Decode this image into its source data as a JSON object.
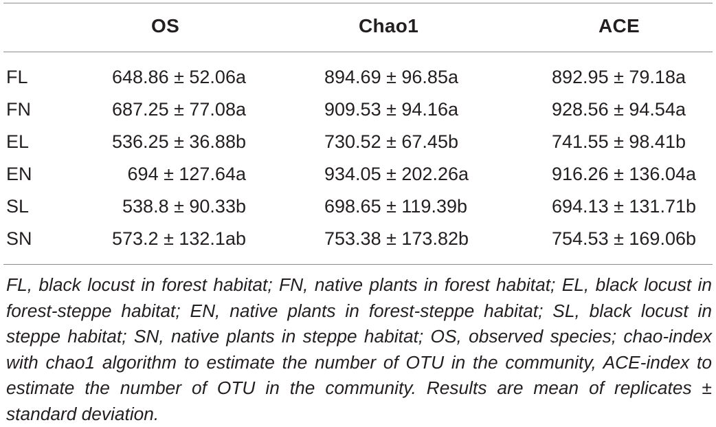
{
  "table": {
    "headers": [
      "",
      "OS",
      "Chao1",
      "ACE"
    ],
    "rows": [
      {
        "label": "FL",
        "os": "648.86 ± 52.06a",
        "chao1": "894.69 ± 96.85a",
        "ace": "892.95 ± 79.18a"
      },
      {
        "label": "FN",
        "os": "687.25 ± 77.08a",
        "chao1": "909.53 ± 94.16a",
        "ace": "928.56 ± 94.54a"
      },
      {
        "label": "EL",
        "os": "536.25 ± 36.88b",
        "chao1": "730.52 ± 67.45b",
        "ace": "741.55 ± 98.41b"
      },
      {
        "label": "EN",
        "os": "694 ± 127.64a",
        "chao1": "934.05 ± 202.26a",
        "ace": "916.26 ± 136.04a"
      },
      {
        "label": "SL",
        "os": "538.8 ± 90.33b",
        "chao1": "698.65 ± 119.39b",
        "ace": "694.13 ± 131.71b"
      },
      {
        "label": "SN",
        "os": "573.2 ± 132.1ab",
        "chao1": "753.38 ± 173.82b",
        "ace": "754.53 ± 169.06b"
      }
    ]
  },
  "footnote": "FL, black locust in forest habitat; FN, native plants in forest habitat; EL, black locust in forest-steppe habitat; EN, native plants in forest-steppe habitat; SL, black locust in steppe habitat; SN, native plants in steppe habitat; OS, observed species; chao-index with chao1 algorithm to estimate the number of OTU in the community, ACE-index to estimate the number of OTU in the community. Results are mean of replicates ± standard deviation."
}
